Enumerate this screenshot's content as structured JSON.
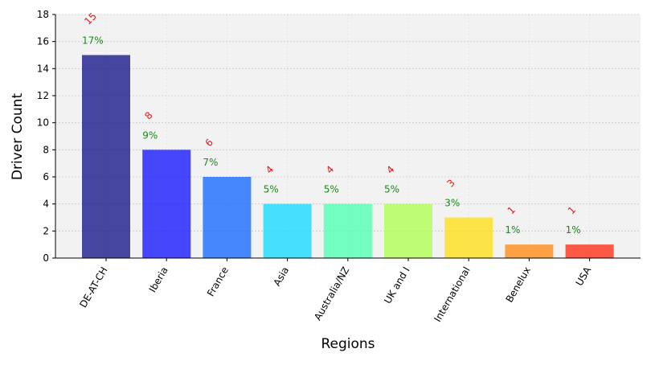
{
  "chart_data": {
    "type": "bar",
    "categories": [
      "DE-AT-CH",
      "Iberia",
      "France",
      "Asia",
      "Australia/NZ",
      "UK and I",
      "International",
      "Benelux",
      "USA"
    ],
    "values": [
      15,
      8,
      6,
      4,
      4,
      4,
      3,
      1,
      1
    ],
    "percent_labels": [
      "17%",
      "9%",
      "7%",
      "5%",
      "5%",
      "5%",
      "3%",
      "1%",
      "1%"
    ],
    "colors": [
      "#1a1a8c",
      "#1a1aff",
      "#1a6cff",
      "#1ad9ff",
      "#52ffb0",
      "#b0ff52",
      "#ffe01a",
      "#ff8c1a",
      "#ff301a"
    ],
    "count_label_color": "#e01a1a",
    "percent_label_color": "#1a8a1a",
    "xlabel": "Regions",
    "ylabel": "Driver Count",
    "ylim": [
      0,
      18
    ],
    "yticks": [
      0,
      2,
      4,
      6,
      8,
      10,
      12,
      14,
      16,
      18
    ],
    "grid": true,
    "plot_background": "#f2f2f2"
  }
}
